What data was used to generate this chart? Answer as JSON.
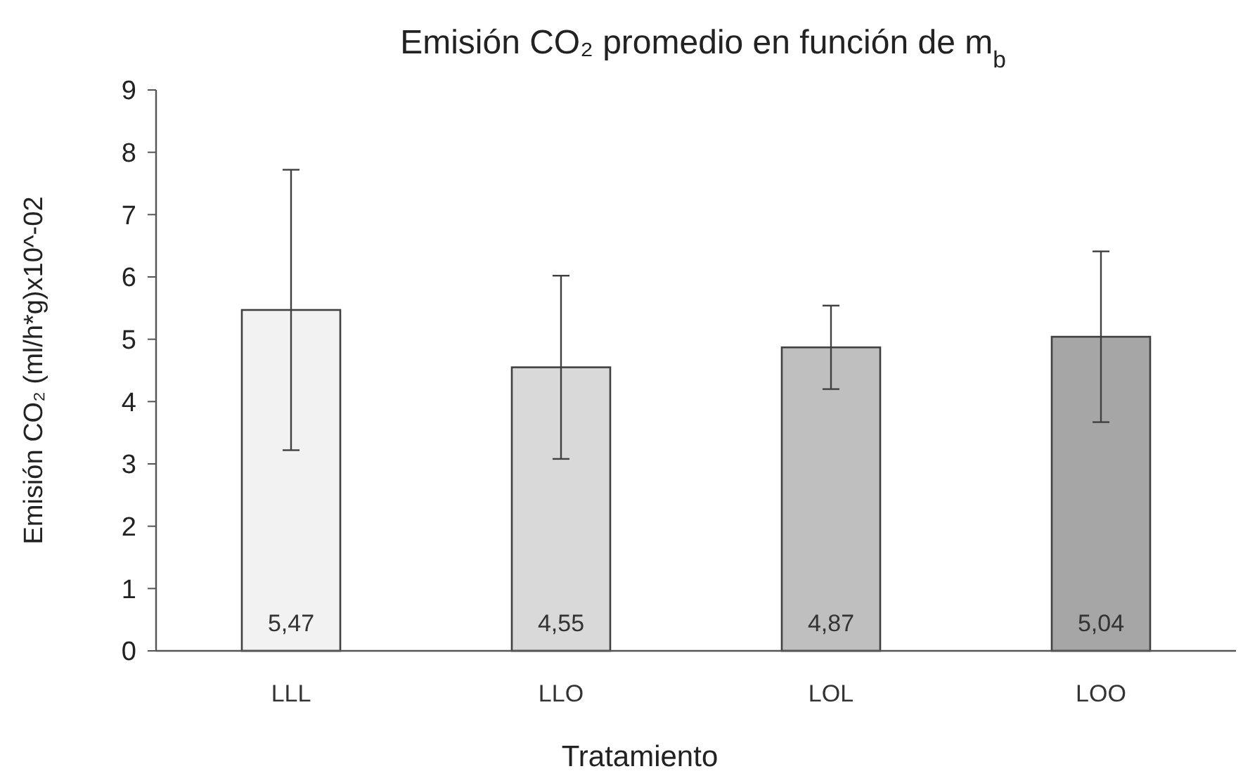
{
  "chart_data": {
    "type": "bar",
    "title": "Emisión CO₂ promedio en función de m$_{b}$",
    "xlabel": "Tratamiento",
    "ylabel": "Emisión CO₂ (ml/h*g)x10^-02",
    "categories": [
      "LLL",
      "LLO",
      "LOL",
      "LOO"
    ],
    "values": [
      5.47,
      4.55,
      4.87,
      5.04
    ],
    "colors": [
      "#f2f2f2",
      "#d9d9d9",
      "#bfbfbf",
      "#a6a6a6"
    ],
    "errors": [
      2.25,
      1.47,
      0.67,
      1.37
    ],
    "value_labels": [
      "5,47",
      "4,55",
      "4,87",
      "5,04"
    ],
    "ylim": [
      0,
      9
    ],
    "yticks": [
      0,
      1,
      2,
      3,
      4,
      5,
      6,
      7,
      8,
      9
    ],
    "grid": false
  }
}
